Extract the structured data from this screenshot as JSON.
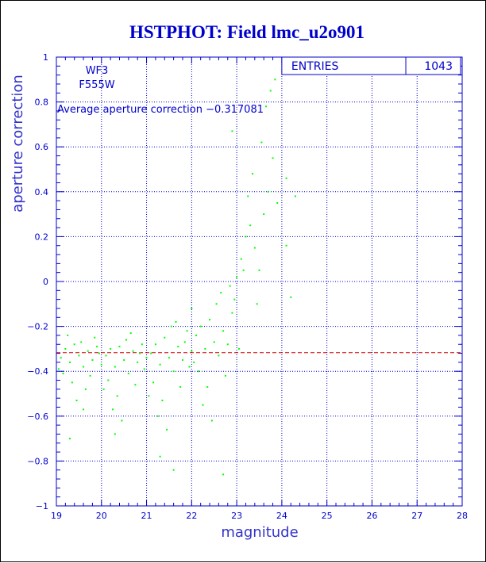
{
  "chart_data": {
    "type": "scatter",
    "title": "HSTPHOT: Field lmc_u2o901",
    "xlabel": "magnitude",
    "ylabel": "aperture correction",
    "xlim": [
      19,
      28
    ],
    "ylim": [
      -1,
      1
    ],
    "x_ticks": [
      "19",
      "20",
      "21",
      "22",
      "23",
      "24",
      "25",
      "26",
      "27",
      "28"
    ],
    "y_ticks": [
      "-1",
      "-0.8",
      "-0.6",
      "-0.4",
      "-0.2",
      "0",
      "0.2",
      "0.4",
      "0.6",
      "0.8",
      "1"
    ],
    "grid": true,
    "annotations": {
      "chip": "WF3",
      "filter": "F555W",
      "average_label": "Average aperture correction",
      "average_value": "-0.317081"
    },
    "stats_box": {
      "label": "ENTRIES",
      "value": "1043"
    },
    "reference_line": {
      "y": -0.317081,
      "style": "dashed",
      "color": "#cc0000"
    },
    "series": [
      {
        "color": "#00ff00",
        "total_entries": 1043,
        "points": [
          [
            19.1,
            -0.34
          ],
          [
            19.2,
            -0.3
          ],
          [
            19.3,
            -0.36
          ],
          [
            19.4,
            -0.28
          ],
          [
            19.5,
            -0.33
          ],
          [
            19.6,
            -0.38
          ],
          [
            19.7,
            -0.31
          ],
          [
            19.8,
            -0.35
          ],
          [
            19.9,
            -0.29
          ],
          [
            20.0,
            -0.37
          ],
          [
            19.15,
            -0.41
          ],
          [
            19.35,
            -0.45
          ],
          [
            19.55,
            -0.27
          ],
          [
            19.75,
            -0.42
          ],
          [
            19.95,
            -0.32
          ],
          [
            19.25,
            -0.24
          ],
          [
            19.65,
            -0.48
          ],
          [
            19.45,
            -0.53
          ],
          [
            19.85,
            -0.25
          ],
          [
            19.05,
            -0.39
          ],
          [
            20.1,
            -0.33
          ],
          [
            20.2,
            -0.3
          ],
          [
            20.3,
            -0.38
          ],
          [
            20.4,
            -0.29
          ],
          [
            20.5,
            -0.35
          ],
          [
            20.6,
            -0.41
          ],
          [
            20.7,
            -0.31
          ],
          [
            20.8,
            -0.36
          ],
          [
            20.9,
            -0.28
          ],
          [
            21.0,
            -0.34
          ],
          [
            20.15,
            -0.44
          ],
          [
            20.35,
            -0.51
          ],
          [
            20.55,
            -0.26
          ],
          [
            20.75,
            -0.46
          ],
          [
            20.95,
            -0.39
          ],
          [
            20.25,
            -0.57
          ],
          [
            20.65,
            -0.23
          ],
          [
            20.45,
            -0.62
          ],
          [
            20.85,
            -0.32
          ],
          [
            20.05,
            -0.48
          ],
          [
            21.1,
            -0.32
          ],
          [
            21.2,
            -0.28
          ],
          [
            21.3,
            -0.37
          ],
          [
            21.4,
            -0.25
          ],
          [
            21.5,
            -0.34
          ],
          [
            21.6,
            -0.4
          ],
          [
            21.7,
            -0.29
          ],
          [
            21.8,
            -0.35
          ],
          [
            21.9,
            -0.22
          ],
          [
            22.0,
            -0.31
          ],
          [
            21.15,
            -0.45
          ],
          [
            21.35,
            -0.53
          ],
          [
            21.55,
            -0.2
          ],
          [
            21.75,
            -0.47
          ],
          [
            21.95,
            -0.38
          ],
          [
            21.25,
            -0.6
          ],
          [
            21.65,
            -0.18
          ],
          [
            21.45,
            -0.66
          ],
          [
            21.85,
            -0.27
          ],
          [
            21.05,
            -0.51
          ],
          [
            22.1,
            -0.24
          ],
          [
            22.2,
            -0.2
          ],
          [
            22.3,
            -0.3
          ],
          [
            22.4,
            -0.17
          ],
          [
            22.5,
            -0.27
          ],
          [
            22.6,
            -0.33
          ],
          [
            22.7,
            -0.22
          ],
          [
            22.8,
            -0.28
          ],
          [
            22.9,
            -0.14
          ],
          [
            22.05,
            -0.36
          ],
          [
            22.15,
            -0.4
          ],
          [
            22.35,
            -0.47
          ],
          [
            22.55,
            -0.1
          ],
          [
            22.75,
            -0.42
          ],
          [
            22.95,
            -0.08
          ],
          [
            22.25,
            -0.55
          ],
          [
            22.65,
            -0.05
          ],
          [
            22.45,
            -0.62
          ],
          [
            22.85,
            -0.02
          ],
          [
            22.0,
            -0.12
          ],
          [
            23.0,
            0.02
          ],
          [
            23.1,
            0.1
          ],
          [
            23.2,
            0.2
          ],
          [
            23.3,
            0.25
          ],
          [
            23.4,
            0.15
          ],
          [
            23.5,
            0.05
          ],
          [
            23.6,
            0.3
          ],
          [
            23.7,
            0.4
          ],
          [
            23.8,
            0.55
          ],
          [
            23.9,
            0.35
          ],
          [
            23.05,
            -0.3
          ],
          [
            23.15,
            0.05
          ],
          [
            23.25,
            0.38
          ],
          [
            23.35,
            0.48
          ],
          [
            23.45,
            -0.1
          ],
          [
            23.55,
            0.62
          ],
          [
            23.65,
            0.78
          ],
          [
            23.75,
            0.85
          ],
          [
            23.85,
            0.9
          ],
          [
            24.1,
            0.46
          ],
          [
            19.3,
            -0.7
          ],
          [
            20.3,
            -0.68
          ],
          [
            21.6,
            -0.84
          ],
          [
            22.7,
            -0.86
          ],
          [
            24.2,
            -0.07
          ],
          [
            24.3,
            0.38
          ],
          [
            22.9,
            0.67
          ],
          [
            24.1,
            0.16
          ],
          [
            21.3,
            -0.78
          ],
          [
            19.6,
            -0.57
          ]
        ]
      }
    ]
  }
}
